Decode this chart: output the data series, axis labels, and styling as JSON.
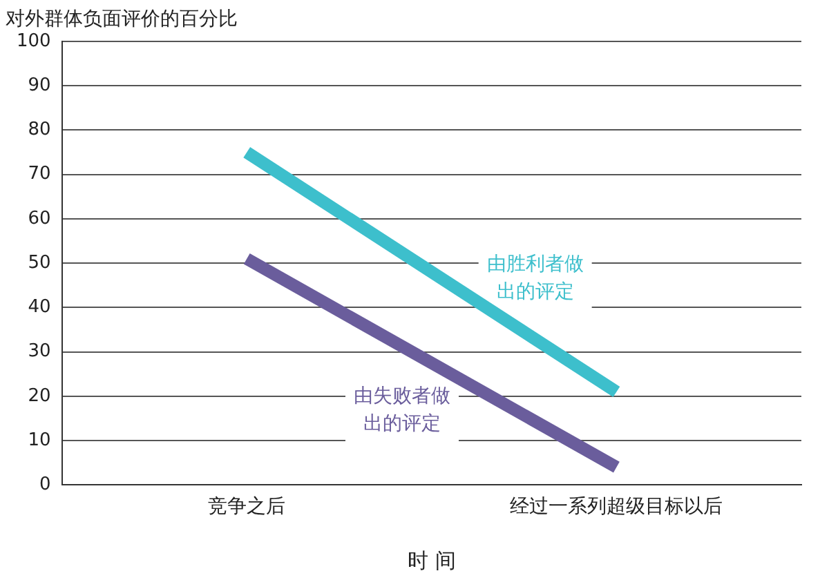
{
  "chart_data": {
    "type": "line",
    "ylabel": "对外群体负面评价的百分比",
    "xlabel": "时 间",
    "categories": [
      "竞争之后",
      "经过一系列超级目标以后"
    ],
    "series": [
      {
        "name": "由胜利者做出的评定",
        "color": "#3dbfcc",
        "values": [
          75,
          21
        ]
      },
      {
        "name": "由失败者做出的评定",
        "color": "#6a5d9c",
        "values": [
          51,
          4
        ]
      }
    ],
    "ylim": [
      0,
      100
    ],
    "yticks": [
      0,
      10,
      20,
      30,
      40,
      50,
      60,
      70,
      80,
      90,
      100
    ],
    "grid": "y",
    "legend": false,
    "marker": "none",
    "line_style": "solid"
  }
}
